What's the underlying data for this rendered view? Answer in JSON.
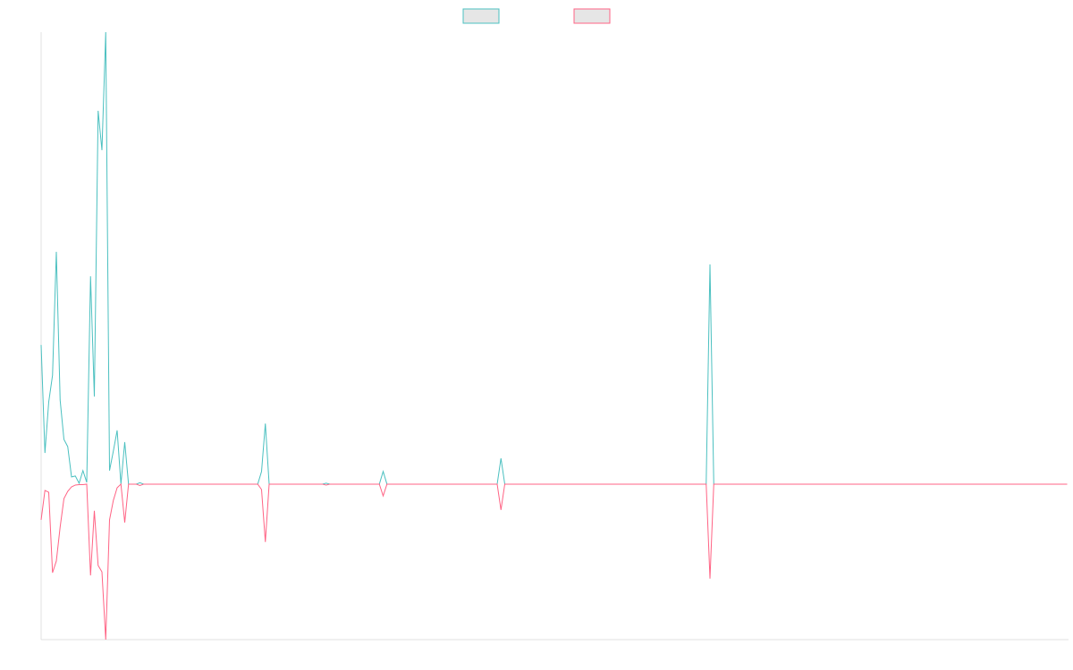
{
  "chart_data": {
    "type": "line",
    "x": [
      0,
      1,
      2,
      3,
      4,
      5,
      6,
      7,
      8,
      9,
      10,
      11,
      12,
      13,
      14,
      15,
      16,
      17,
      18,
      19,
      20,
      21,
      22,
      23,
      24,
      25,
      26,
      27,
      56,
      57,
      58,
      59,
      60,
      61,
      74,
      75,
      76,
      89,
      90,
      91,
      120,
      121,
      122,
      175,
      176,
      177,
      270
    ],
    "xlim": [
      0,
      270.35
    ],
    "ylim": [
      -34.4,
      100
    ],
    "legend": "top",
    "series": [
      {
        "color": "#4bc0c0",
        "values": [
          30.8,
          6.9,
          18.2,
          24.1,
          51.4,
          18.6,
          9.9,
          8.3,
          1.6,
          1.8,
          0.2,
          3.0,
          0.4,
          46.0,
          19.4,
          82.6,
          73.9,
          100,
          3.0,
          7.3,
          11.9,
          0,
          9.3,
          0,
          0,
          0,
          0.3,
          0,
          0,
          0,
          2.8,
          13.4,
          0,
          0,
          0,
          0.2,
          0,
          0,
          2.8,
          0,
          0,
          5.7,
          0,
          0,
          48.6,
          0,
          0
        ]
      },
      {
        "color": "#ff6384",
        "values": [
          -7.9,
          -1.4,
          -1.8,
          -19.6,
          -17.0,
          -9.5,
          -3.2,
          -1.6,
          -0.6,
          -0.2,
          -0.1,
          -0.1,
          0,
          -20.2,
          -5.9,
          -18.0,
          -19.4,
          -34.4,
          -7.9,
          -3.6,
          -0.8,
          0,
          -8.5,
          0,
          0,
          0,
          -0.3,
          0,
          0,
          0,
          -1.2,
          -12.8,
          0,
          0,
          0,
          -0.2,
          0,
          0,
          -2.6,
          0,
          0,
          -5.7,
          0,
          0,
          -20.9,
          0,
          0
        ]
      }
    ]
  }
}
